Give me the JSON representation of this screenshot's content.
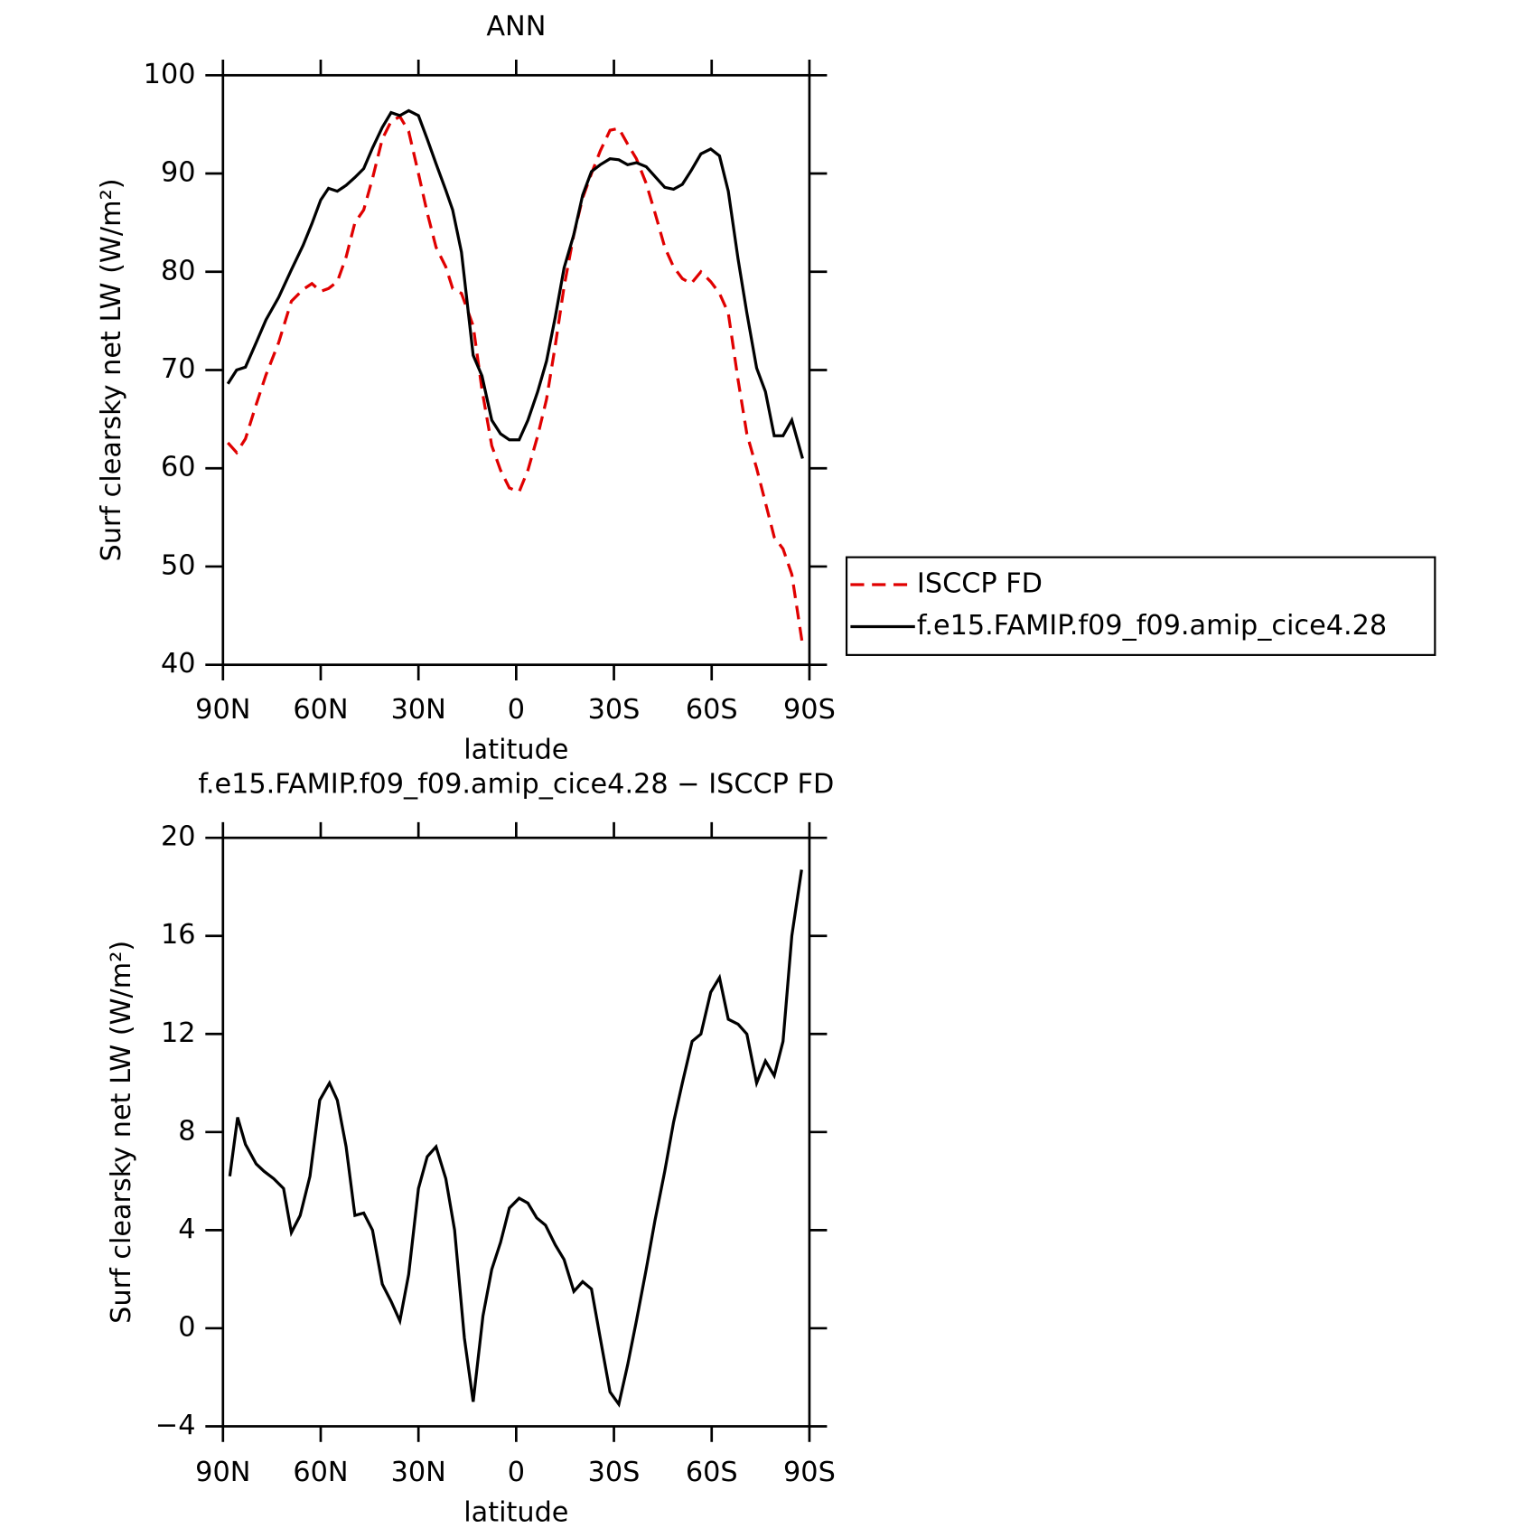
{
  "chart_data": [
    {
      "type": "line",
      "title": "ANN",
      "xlabel": "latitude",
      "ylabel": "Surf clearsky net LW (W/m²)",
      "xlim": [
        90,
        -90
      ],
      "xticks": [
        {
          "value": 90,
          "label": "90N"
        },
        {
          "value": 60,
          "label": "60N"
        },
        {
          "value": 30,
          "label": "30N"
        },
        0,
        {
          "value": -30,
          "label": "30S"
        },
        {
          "value": -60,
          "label": "60S"
        },
        {
          "value": -90,
          "label": "90S"
        }
      ],
      "ylim": [
        40,
        100
      ],
      "yticks": [
        40,
        50,
        60,
        70,
        80,
        90,
        100
      ],
      "legend": "right",
      "x": [
        88.5,
        85.8,
        83.1,
        79.8,
        76.8,
        72.9,
        69.0,
        65.4,
        62.7,
        60.0,
        57.6,
        54.9,
        52.2,
        49.5,
        46.8,
        44.1,
        41.1,
        38.4,
        35.7,
        33.0,
        30.0,
        27.3,
        24.6,
        21.6,
        19.5,
        16.8,
        13.2,
        10.5,
        7.5,
        4.8,
        2.1,
        -0.9,
        -3.6,
        -6.6,
        -9.3,
        -12.0,
        -14.7,
        -17.7,
        -20.4,
        -23.1,
        -25.8,
        -28.8,
        -31.5,
        -34.2,
        -36.9,
        -39.9,
        -42.6,
        -45.6,
        -48.3,
        -51.0,
        -53.7,
        -56.7,
        -59.7,
        -62.4,
        -65.1,
        -68.1,
        -70.8,
        -73.8,
        -76.5,
        -79.2,
        -81.9,
        -84.6,
        -87.9
      ],
      "series": [
        {
          "name": "ISCCP FD",
          "color": "#e00000",
          "dash": true,
          "values": [
            62.6,
            61.6,
            63.0,
            66.5,
            69.5,
            72.8,
            77.0,
            78.2,
            78.8,
            78.0,
            78.3,
            79.0,
            81.5,
            85.0,
            86.3,
            89.5,
            93.5,
            95.3,
            95.8,
            94.3,
            90.0,
            86.0,
            82.5,
            80.5,
            78.3,
            77.8,
            74.5,
            68.0,
            62.3,
            59.8,
            58.0,
            57.6,
            59.8,
            63.3,
            67.0,
            72.5,
            78.5,
            83.8,
            87.5,
            90.0,
            92.3,
            94.4,
            94.6,
            93.0,
            91.5,
            89.0,
            86.0,
            82.5,
            80.5,
            79.3,
            78.8,
            80.0,
            79.0,
            77.8,
            75.8,
            69.0,
            63.5,
            60.0,
            56.5,
            53.0,
            51.8,
            49.2,
            42.0
          ]
        },
        {
          "name": "f.e15.FAMIP.f09_f09.amip_cice4.28",
          "color": "#000000",
          "dash": false,
          "values": [
            68.6,
            70.0,
            70.3,
            72.8,
            75.1,
            77.4,
            80.2,
            82.7,
            84.9,
            87.3,
            88.5,
            88.2,
            88.8,
            89.6,
            90.5,
            92.6,
            94.7,
            96.2,
            95.9,
            96.4,
            95.9,
            93.5,
            91.0,
            88.3,
            86.3,
            82.0,
            71.5,
            69.4,
            64.9,
            63.5,
            62.9,
            62.9,
            64.9,
            67.8,
            70.9,
            75.4,
            80.4,
            83.8,
            87.8,
            90.2,
            90.9,
            91.5,
            91.4,
            90.9,
            91.1,
            90.7,
            89.7,
            88.6,
            88.4,
            88.9,
            90.3,
            92.0,
            92.5,
            91.8,
            88.2,
            81.3,
            75.8,
            70.2,
            67.8,
            63.3,
            63.3,
            64.9,
            61.0
          ]
        }
      ]
    },
    {
      "type": "line",
      "title": "f.e15.FAMIP.f09_f09.amip_cice4.28 − ISCCP FD",
      "xlabel": "latitude",
      "ylabel": "Surf clearsky net LW (W/m²)",
      "xlim": [
        90,
        -90
      ],
      "xticks": [
        {
          "value": 90,
          "label": "90N"
        },
        {
          "value": 60,
          "label": "60N"
        },
        {
          "value": 30,
          "label": "30N"
        },
        0,
        {
          "value": -30,
          "label": "30S"
        },
        {
          "value": -60,
          "label": "60S"
        },
        {
          "value": -90,
          "label": "90S"
        }
      ],
      "ylim": [
        -4,
        20
      ],
      "yticks": [
        {
          "value": -4,
          "label": "−4"
        },
        0,
        4,
        8,
        12,
        16,
        20
      ],
      "x": [
        87.9,
        85.5,
        83.1,
        79.8,
        77.4,
        74.4,
        71.4,
        69.0,
        66.3,
        63.3,
        60.3,
        57.3,
        54.9,
        52.2,
        49.5,
        46.8,
        44.1,
        41.1,
        38.4,
        35.7,
        33.0,
        30.0,
        27.3,
        24.6,
        21.6,
        18.9,
        15.9,
        13.2,
        10.2,
        7.5,
        4.8,
        2.1,
        -0.9,
        -3.6,
        -6.3,
        -9.0,
        -12.0,
        -14.7,
        -17.7,
        -20.4,
        -23.1,
        -25.8,
        -28.8,
        -31.5,
        -34.2,
        -36.9,
        -39.9,
        -42.6,
        -45.6,
        -48.3,
        -51.0,
        -54.0,
        -56.7,
        -59.7,
        -62.4,
        -65.1,
        -68.1,
        -70.8,
        -73.8,
        -76.5,
        -79.2,
        -81.9,
        -84.6,
        -87.6
      ],
      "series": [
        {
          "color": "#000000",
          "dash": false,
          "values": [
            6.2,
            8.6,
            7.5,
            6.7,
            6.4,
            6.1,
            5.7,
            3.9,
            4.6,
            6.2,
            9.3,
            10.0,
            9.3,
            7.4,
            4.6,
            4.7,
            4.0,
            1.8,
            1.1,
            0.3,
            2.2,
            5.7,
            7.0,
            7.4,
            6.1,
            4.0,
            -0.4,
            -3.0,
            0.5,
            2.4,
            3.5,
            4.9,
            5.3,
            5.1,
            4.5,
            4.2,
            3.4,
            2.8,
            1.5,
            1.9,
            1.6,
            -0.4,
            -2.6,
            -3.1,
            -1.5,
            0.3,
            2.4,
            4.4,
            6.4,
            8.4,
            10.0,
            11.7,
            12.0,
            13.7,
            14.3,
            12.6,
            12.4,
            12.0,
            10.0,
            10.9,
            10.3,
            11.7,
            16.0,
            18.7
          ]
        }
      ]
    }
  ]
}
